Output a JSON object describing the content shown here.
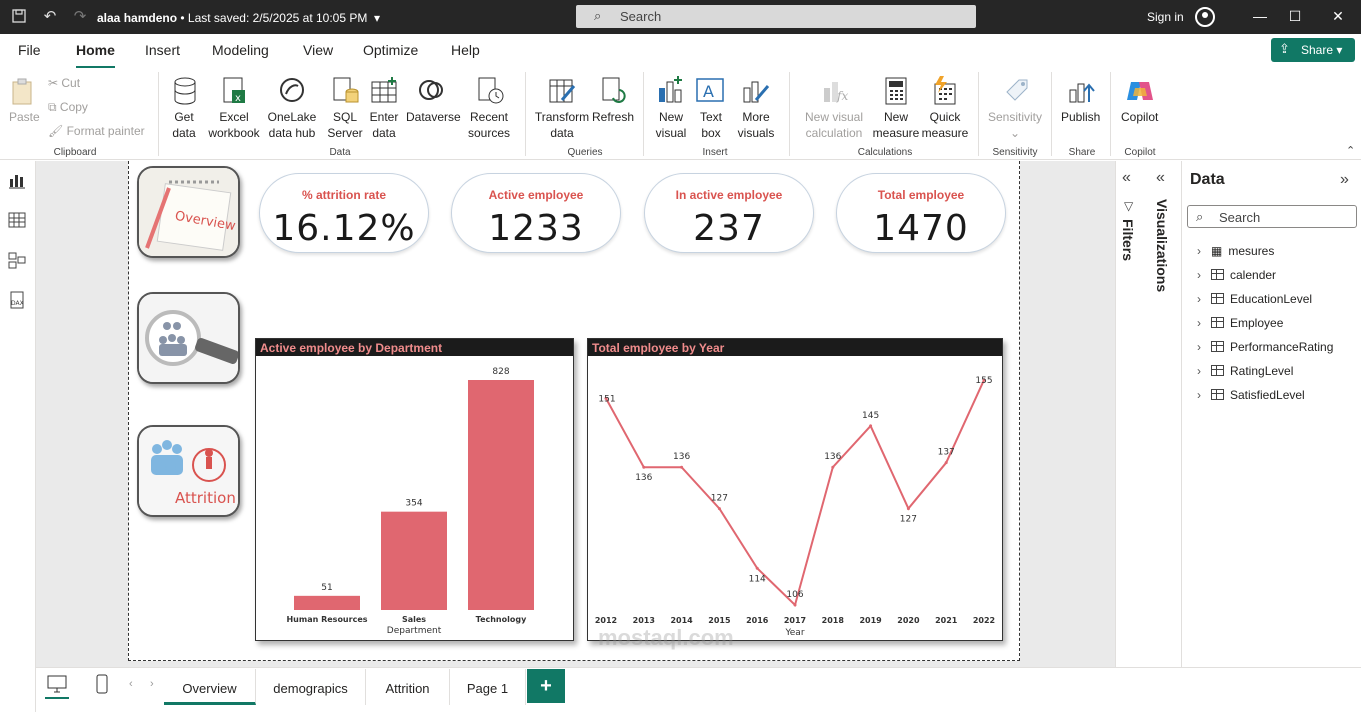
{
  "titlebar": {
    "doc_name": "alaa hamdeno",
    "saved": "• Last saved: 2/5/2025 at 10:05 PM",
    "search_placeholder": "Search",
    "signin": "Sign in"
  },
  "menu": [
    "File",
    "Home",
    "Insert",
    "Modeling",
    "View",
    "Optimize",
    "Help"
  ],
  "share_label": "Share",
  "ribbon": {
    "clipboard": {
      "paste": "Paste",
      "cut": "Cut",
      "copy": "Copy",
      "format_painter": "Format painter",
      "group": "Clipboard"
    },
    "data": {
      "get_data": "Get data",
      "excel": "Excel workbook",
      "onelake": "OneLake data hub",
      "sql": "SQL Server",
      "enter": "Enter data",
      "dataverse": "Dataverse",
      "recent": "Recent sources",
      "group": "Data"
    },
    "queries": {
      "transform": "Transform data",
      "refresh": "Refresh",
      "group": "Queries"
    },
    "insert": {
      "new_visual": "New visual",
      "text_box": "Text box",
      "more": "More visuals",
      "group": "Insert"
    },
    "calculations": {
      "new_visual_calc": "New visual calculation",
      "new_measure": "New measure",
      "quick_measure": "Quick measure",
      "group": "Calculations"
    },
    "sensitivity": {
      "label": "Sensitivity",
      "group": "Sensitivity"
    },
    "share": {
      "publish": "Publish",
      "group": "Share"
    },
    "copilot": {
      "label": "Copilot",
      "group": "Copilot"
    }
  },
  "nav_buttons": [
    "Overview",
    "Attrition"
  ],
  "kpis": [
    {
      "label": "% attrition rate",
      "value": "16.12%"
    },
    {
      "label": "Active employee",
      "value": "1233"
    },
    {
      "label": "In active employee",
      "value": "237"
    },
    {
      "label": "Total employee",
      "value": "1470"
    }
  ],
  "chart_data": [
    {
      "type": "bar",
      "title": "Active employee by Department",
      "xlabel": "Department",
      "categories": [
        "Human Resources",
        "Sales",
        "Technology"
      ],
      "values": [
        51,
        354,
        828
      ],
      "ylim": [
        0,
        828
      ],
      "color": "#e06770"
    },
    {
      "type": "line",
      "title": "Total employee by Year",
      "xlabel": "Year",
      "x": [
        "2012",
        "2013",
        "2014",
        "2015",
        "2016",
        "2017",
        "2018",
        "2019",
        "2020",
        "2021",
        "2022"
      ],
      "values": [
        151,
        136,
        136,
        127,
        114,
        106,
        136,
        145,
        127,
        137,
        155
      ],
      "ylim": [
        106,
        155
      ],
      "color": "#e06770"
    }
  ],
  "panes": {
    "filters": "Filters",
    "visualizations": "Visualizations",
    "data_title": "Data",
    "data_search": "Search"
  },
  "data_tables": [
    "mesures",
    "calender",
    "EducationLevel",
    "Employee",
    "PerformanceRating",
    "RatingLevel",
    "SatisfiedLevel"
  ],
  "pages": [
    "Overview",
    "demograpics",
    "Attrition",
    "Page 1"
  ],
  "add_page": "+",
  "watermark": "mostaql.com"
}
